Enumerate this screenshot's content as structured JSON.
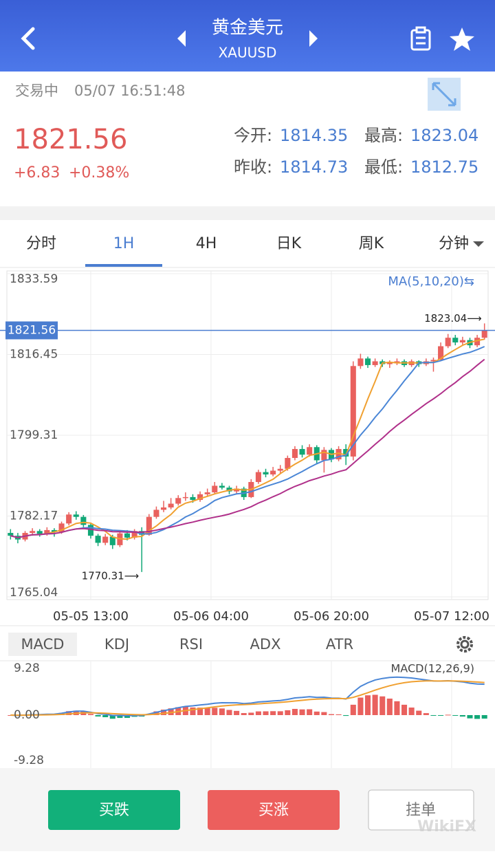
{
  "header": {
    "title": "黄金美元",
    "symbol": "XAUUSD"
  },
  "status": {
    "state": "交易中",
    "time": "05/07 16:51:48"
  },
  "quote": {
    "price": "1821.56",
    "change": "+6.83",
    "change_pct": "+0.38%",
    "stats": [
      {
        "label": "今开:",
        "value": "1814.35"
      },
      {
        "label": "最高:",
        "value": "1823.04"
      },
      {
        "label": "昨收:",
        "value": "1814.73"
      },
      {
        "label": "最低:",
        "value": "1812.75"
      }
    ]
  },
  "tabs": {
    "items": [
      "分时",
      "1H",
      "4H",
      "日K",
      "周K",
      "分钟"
    ],
    "active": 1
  },
  "chart_data": [
    {
      "type": "candlestick",
      "ma_label": "MA(5,10,20)⇆",
      "ma": [
        {
          "period": 5,
          "color": "#f0a030"
        },
        {
          "period": 10,
          "color": "#4a86d6"
        },
        {
          "period": 20,
          "color": "#b0308a"
        }
      ],
      "up_color": "#e9615e",
      "down_color": "#12a877",
      "candles": [
        [
          1778.6,
          1779.4,
          1777.2,
          1778.0
        ],
        [
          1778.0,
          1778.6,
          1776.4,
          1777.2
        ],
        [
          1777.2,
          1779.0,
          1776.8,
          1778.6
        ],
        [
          1778.6,
          1779.6,
          1778.0,
          1779.0
        ],
        [
          1779.0,
          1779.4,
          1777.8,
          1778.4
        ],
        [
          1778.4,
          1779.8,
          1778.0,
          1779.2
        ],
        [
          1779.2,
          1779.6,
          1777.8,
          1778.8
        ],
        [
          1778.8,
          1781.0,
          1778.4,
          1780.6
        ],
        [
          1780.6,
          1783.0,
          1780.2,
          1782.5
        ],
        [
          1782.5,
          1783.2,
          1781.4,
          1782.0
        ],
        [
          1782.0,
          1782.4,
          1779.8,
          1780.3
        ],
        [
          1780.3,
          1780.8,
          1777.4,
          1778.0
        ],
        [
          1778.0,
          1778.4,
          1775.8,
          1776.5
        ],
        [
          1776.5,
          1778.4,
          1776.0,
          1777.8
        ],
        [
          1777.8,
          1778.2,
          1775.2,
          1776.0
        ],
        [
          1776.0,
          1779.0,
          1775.6,
          1778.5
        ],
        [
          1778.5,
          1779.2,
          1777.0,
          1777.6
        ],
        [
          1777.6,
          1779.4,
          1777.2,
          1779.0
        ],
        [
          1779.0,
          1779.8,
          1770.31,
          1778.2
        ],
        [
          1778.2,
          1782.6,
          1778.0,
          1782.0
        ],
        [
          1782.0,
          1784.2,
          1781.6,
          1783.5
        ],
        [
          1783.5,
          1785.4,
          1783.0,
          1784.0
        ],
        [
          1784.0,
          1786.0,
          1783.6,
          1784.8
        ],
        [
          1784.8,
          1786.6,
          1784.4,
          1786.0
        ],
        [
          1786.0,
          1787.2,
          1785.4,
          1786.2
        ],
        [
          1786.2,
          1786.8,
          1785.0,
          1785.6
        ],
        [
          1785.6,
          1787.4,
          1785.2,
          1786.8
        ],
        [
          1786.8,
          1788.0,
          1786.4,
          1787.2
        ],
        [
          1787.2,
          1789.4,
          1786.8,
          1788.6
        ],
        [
          1788.6,
          1789.2,
          1787.8,
          1788.2
        ],
        [
          1788.2,
          1788.6,
          1786.8,
          1787.4
        ],
        [
          1787.4,
          1788.6,
          1787.0,
          1788.0
        ],
        [
          1788.0,
          1788.4,
          1785.6,
          1786.2
        ],
        [
          1786.2,
          1790.0,
          1786.0,
          1789.4
        ],
        [
          1789.4,
          1792.0,
          1789.0,
          1791.5
        ],
        [
          1791.5,
          1792.2,
          1790.4,
          1791.0
        ],
        [
          1791.0,
          1792.6,
          1790.6,
          1791.8
        ],
        [
          1791.8,
          1793.0,
          1791.2,
          1792.2
        ],
        [
          1792.2,
          1795.0,
          1791.8,
          1794.5
        ],
        [
          1794.5,
          1797.0,
          1794.0,
          1796.4
        ],
        [
          1796.4,
          1797.2,
          1794.6,
          1795.2
        ],
        [
          1795.2,
          1797.4,
          1794.8,
          1796.8
        ],
        [
          1796.8,
          1797.2,
          1793.4,
          1794.0
        ],
        [
          1794.0,
          1796.8,
          1791.4,
          1796.2
        ],
        [
          1796.2,
          1796.6,
          1793.6,
          1794.2
        ],
        [
          1794.2,
          1797.0,
          1793.8,
          1796.4
        ],
        [
          1796.4,
          1797.4,
          1793.0,
          1794.8
        ],
        [
          1794.8,
          1815.0,
          1794.0,
          1814.0
        ],
        [
          1814.0,
          1816.6,
          1813.4,
          1815.6
        ],
        [
          1815.6,
          1816.0,
          1813.6,
          1814.2
        ],
        [
          1814.2,
          1815.6,
          1813.8,
          1815.0
        ],
        [
          1815.0,
          1815.4,
          1813.8,
          1814.4
        ],
        [
          1814.4,
          1815.2,
          1813.6,
          1814.8
        ],
        [
          1814.8,
          1815.6,
          1814.2,
          1815.0
        ],
        [
          1815.0,
          1815.4,
          1813.8,
          1814.2
        ],
        [
          1814.2,
          1815.4,
          1813.8,
          1815.0
        ],
        [
          1815.0,
          1815.2,
          1813.8,
          1814.4
        ],
        [
          1814.4,
          1815.6,
          1814.0,
          1815.0
        ],
        [
          1815.0,
          1815.8,
          1812.8,
          1815.3
        ],
        [
          1815.3,
          1819.0,
          1815.0,
          1818.2
        ],
        [
          1818.2,
          1820.8,
          1817.8,
          1820.0
        ],
        [
          1820.0,
          1820.6,
          1818.4,
          1819.0
        ],
        [
          1819.0,
          1820.2,
          1818.4,
          1819.5
        ],
        [
          1819.5,
          1820.0,
          1817.8,
          1818.4
        ],
        [
          1818.4,
          1820.6,
          1818.0,
          1820.0
        ],
        [
          1820.0,
          1823.04,
          1819.6,
          1821.56
        ]
      ],
      "ylim": [
        1765.04,
        1833.59
      ],
      "yticks": [
        1833.59,
        1816.45,
        1799.31,
        1782.17,
        1765.04
      ],
      "xticks": [
        {
          "value": 11,
          "label": "05-05 13:00"
        },
        {
          "value": 27.5,
          "label": "05-06 04:00"
        },
        {
          "value": 44,
          "label": "05-06 20:00"
        },
        {
          "value": 60.5,
          "label": "05-07 12:00"
        }
      ],
      "last_price": {
        "value": 1821.56,
        "label": "1821.56"
      },
      "annotations": [
        {
          "index": 65,
          "value": 1823.04,
          "label": "1823.04⟶"
        },
        {
          "index": 18,
          "value": 1770.31,
          "label": "1770.31⟶"
        }
      ]
    },
    {
      "type": "macd",
      "tabs": [
        "MACD",
        "KDJ",
        "RSI",
        "ADX",
        "ATR"
      ],
      "active": 0,
      "label": "MACD(12,26,9)",
      "params": [
        12,
        26,
        9
      ],
      "ylim": [
        -9.28,
        9.28
      ],
      "yticks": [
        9.28,
        {
          "value": 0,
          "label": "0.00"
        },
        -9.28
      ],
      "dif_color": "#4a86d6",
      "dea_color": "#f0a030"
    }
  ],
  "buttons": [
    "买跌",
    "买涨",
    "挂单"
  ],
  "watermark": "WikiFX"
}
